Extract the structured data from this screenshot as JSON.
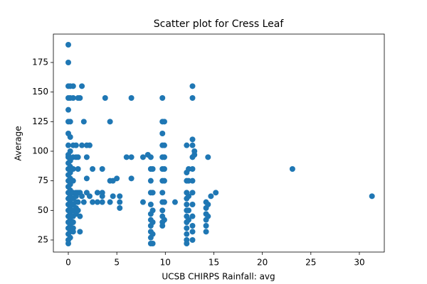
{
  "chart_data": {
    "type": "scatter",
    "title": "Scatter plot for Cress Leaf",
    "x_label": "UCSB CHIRPS Rainfall: avg",
    "y_label": "Average",
    "color": "#1f77b4",
    "grid": false,
    "xlim": [
      -1.54,
      32.57
    ],
    "ylim": [
      14.8,
      199
    ],
    "xticks": [
      0,
      5,
      10,
      15,
      20,
      25,
      30
    ],
    "yticks": [
      25,
      50,
      75,
      100,
      125,
      150,
      175
    ],
    "x": [
      0,
      0,
      0,
      0,
      0,
      0,
      0,
      0,
      0,
      0,
      0,
      0,
      0,
      0,
      0,
      0,
      0,
      0,
      0,
      0,
      0,
      0,
      0,
      0,
      0,
      0.2,
      0.2,
      0.2,
      0.2,
      0.2,
      0.2,
      0.2,
      0.2,
      0.2,
      0.2,
      0.2,
      0.2,
      0.2,
      0.2,
      0.2,
      0.2,
      0.2,
      0.2,
      0.2,
      0.5,
      0.5,
      0.5,
      0.5,
      0.5,
      0.5,
      0.5,
      0.5,
      0.5,
      0.5,
      0.5,
      0.5,
      0.5,
      0.5,
      0.8,
      0.8,
      0.8,
      0.8,
      0.8,
      0.8,
      0.8,
      1,
      1,
      1,
      1,
      1,
      1,
      1.2,
      1.2,
      1.2,
      1.2,
      1.4,
      1.4,
      1.4,
      1.6,
      1.6,
      1.9,
      1.9,
      1.9,
      1.9,
      2.2,
      2.2,
      2.5,
      2.5,
      3,
      3,
      3.5,
      3.5,
      3.5,
      3.5,
      3.8,
      4.3,
      4.3,
      4.3,
      4.6,
      4.6,
      5,
      5.3,
      5.3,
      5.3,
      6,
      6.5,
      6.5,
      6.5,
      7.7,
      7.7,
      8.2,
      8.5,
      8.5,
      8.5,
      8.5,
      8.5,
      8.5,
      8.5,
      8.5,
      8.5,
      8.5,
      8.5,
      8.7,
      8.7,
      8.7,
      8.7,
      8.7,
      8.7,
      9.7,
      9.7,
      9.7,
      9.7,
      9.7,
      9.7,
      9.7,
      9.7,
      9.7,
      9.7,
      9.7,
      9.7,
      9.7,
      9.9,
      9.9,
      9.9,
      9.9,
      9.9,
      9.9,
      9.9,
      11,
      12.2,
      12.2,
      12.2,
      12.2,
      12.2,
      12.2,
      12.2,
      12.2,
      12.2,
      12.2,
      12.2,
      12.2,
      12.2,
      12.4,
      12.4,
      12.4,
      12.4,
      12.4,
      12.8,
      12.8,
      12.8,
      12.8,
      12.8,
      12.8,
      12.8,
      12.8,
      12.8,
      12.8,
      12.8,
      12.8,
      12.8,
      13,
      13,
      14.2,
      14.2,
      14.2,
      14.2,
      14.2,
      14.2,
      14.4,
      14.4,
      14.4,
      14.7,
      15.2,
      23.1,
      31.3
    ],
    "y": [
      190,
      175,
      155,
      145,
      135,
      125,
      115,
      105,
      97,
      95,
      90,
      85,
      80,
      75,
      70,
      65,
      60,
      55,
      50,
      45,
      40,
      35,
      30,
      25,
      22,
      155,
      145,
      125,
      112,
      100,
      92,
      87,
      82,
      77,
      72,
      67,
      62,
      57,
      52,
      47,
      42,
      37,
      32,
      27,
      155,
      145,
      105,
      95,
      85,
      75,
      65,
      60,
      55,
      50,
      45,
      40,
      35,
      32,
      105,
      95,
      65,
      62,
      57,
      52,
      47,
      145,
      95,
      85,
      65,
      57,
      50,
      145,
      65,
      45,
      32,
      155,
      105,
      62,
      125,
      57,
      105,
      95,
      77,
      65,
      105,
      62,
      85,
      57,
      65,
      57,
      85,
      65,
      62,
      57,
      145,
      125,
      75,
      57,
      75,
      62,
      77,
      62,
      57,
      52,
      95,
      145,
      95,
      77,
      95,
      57,
      97,
      95,
      85,
      75,
      65,
      55,
      47,
      42,
      37,
      32,
      27,
      22,
      85,
      65,
      50,
      40,
      30,
      22,
      145,
      125,
      115,
      105,
      95,
      85,
      75,
      65,
      57,
      50,
      45,
      40,
      37,
      125,
      105,
      95,
      85,
      75,
      57,
      42,
      57,
      105,
      82,
      75,
      65,
      60,
      55,
      50,
      45,
      40,
      35,
      30,
      25,
      22,
      85,
      75,
      62,
      50,
      42,
      155,
      145,
      110,
      105,
      95,
      85,
      75,
      65,
      55,
      45,
      37,
      32,
      25,
      100,
      97,
      57,
      52,
      47,
      42,
      37,
      32,
      95,
      55,
      45,
      62,
      65,
      85,
      62
    ]
  }
}
